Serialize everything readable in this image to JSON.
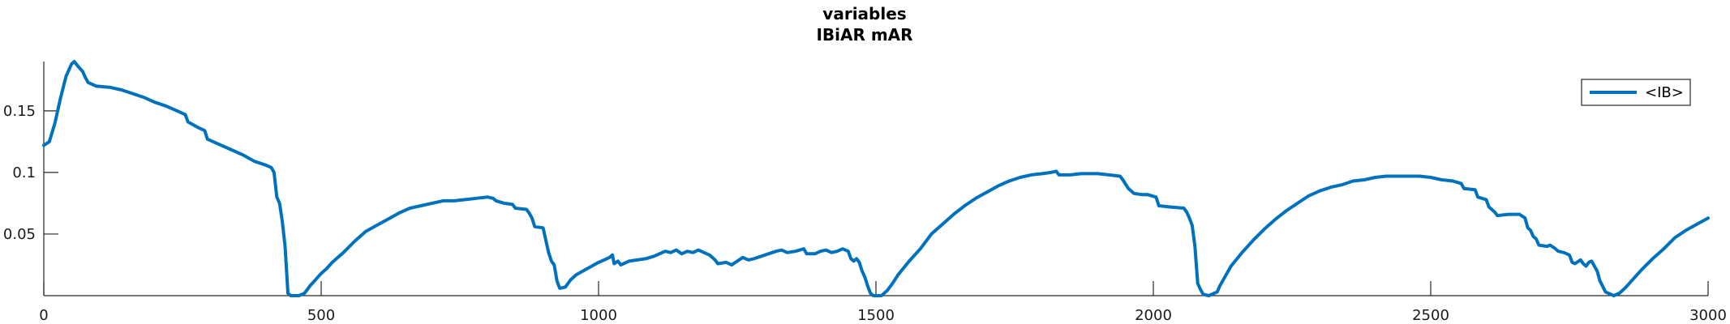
{
  "chart_data": {
    "type": "line",
    "title": "variables",
    "subtitle": "IBiAR mAR",
    "xlabel": "",
    "ylabel": "",
    "xlim": [
      0,
      3000
    ],
    "ylim": [
      0,
      0.19
    ],
    "xticks": [
      0,
      500,
      1000,
      1500,
      2000,
      2500,
      3000
    ],
    "yticks": [
      0.05,
      0.1,
      0.15
    ],
    "ytick_labels": [
      "0.05",
      "0.1",
      "0.15"
    ],
    "grid": false,
    "legend": {
      "position": "top-right",
      "entries": [
        "<IB>"
      ]
    },
    "series": [
      {
        "name": "<IB>",
        "color": "#0072BD",
        "points": [
          [
            0,
            0.122
          ],
          [
            10,
            0.125
          ],
          [
            20,
            0.14
          ],
          [
            30,
            0.16
          ],
          [
            40,
            0.178
          ],
          [
            50,
            0.188
          ],
          [
            55,
            0.19
          ],
          [
            62,
            0.186
          ],
          [
            70,
            0.182
          ],
          [
            75,
            0.177
          ],
          [
            80,
            0.173
          ],
          [
            95,
            0.17
          ],
          [
            120,
            0.169
          ],
          [
            140,
            0.167
          ],
          [
            160,
            0.164
          ],
          [
            180,
            0.161
          ],
          [
            200,
            0.157
          ],
          [
            220,
            0.154
          ],
          [
            240,
            0.15
          ],
          [
            255,
            0.147
          ],
          [
            260,
            0.141
          ],
          [
            280,
            0.136
          ],
          [
            290,
            0.134
          ],
          [
            295,
            0.127
          ],
          [
            320,
            0.122
          ],
          [
            340,
            0.118
          ],
          [
            360,
            0.114
          ],
          [
            380,
            0.109
          ],
          [
            400,
            0.106
          ],
          [
            410,
            0.104
          ],
          [
            415,
            0.1
          ],
          [
            420,
            0.08
          ],
          [
            425,
            0.075
          ],
          [
            430,
            0.06
          ],
          [
            435,
            0.04
          ],
          [
            440,
            0.002
          ],
          [
            445,
            0
          ],
          [
            460,
            0
          ],
          [
            470,
            0.002
          ],
          [
            480,
            0.008
          ],
          [
            490,
            0.013
          ],
          [
            500,
            0.018
          ],
          [
            510,
            0.022
          ],
          [
            520,
            0.027
          ],
          [
            540,
            0.035
          ],
          [
            560,
            0.044
          ],
          [
            580,
            0.052
          ],
          [
            600,
            0.057
          ],
          [
            620,
            0.062
          ],
          [
            640,
            0.067
          ],
          [
            660,
            0.071
          ],
          [
            680,
            0.073
          ],
          [
            700,
            0.075
          ],
          [
            720,
            0.077
          ],
          [
            740,
            0.077
          ],
          [
            760,
            0.078
          ],
          [
            780,
            0.079
          ],
          [
            800,
            0.08
          ],
          [
            810,
            0.079
          ],
          [
            815,
            0.077
          ],
          [
            830,
            0.075
          ],
          [
            845,
            0.074
          ],
          [
            850,
            0.071
          ],
          [
            870,
            0.07
          ],
          [
            875,
            0.067
          ],
          [
            880,
            0.063
          ],
          [
            885,
            0.056
          ],
          [
            900,
            0.055
          ],
          [
            905,
            0.045
          ],
          [
            910,
            0.035
          ],
          [
            915,
            0.028
          ],
          [
            920,
            0.025
          ],
          [
            925,
            0.012
          ],
          [
            930,
            0.006
          ],
          [
            940,
            0.007
          ],
          [
            950,
            0.013
          ],
          [
            960,
            0.017
          ],
          [
            980,
            0.022
          ],
          [
            1000,
            0.027
          ],
          [
            1010,
            0.029
          ],
          [
            1020,
            0.031
          ],
          [
            1025,
            0.033
          ],
          [
            1028,
            0.026
          ],
          [
            1035,
            0.028
          ],
          [
            1040,
            0.025
          ],
          [
            1055,
            0.028
          ],
          [
            1070,
            0.029
          ],
          [
            1085,
            0.03
          ],
          [
            1100,
            0.032
          ],
          [
            1110,
            0.034
          ],
          [
            1120,
            0.036
          ],
          [
            1130,
            0.035
          ],
          [
            1140,
            0.037
          ],
          [
            1150,
            0.034
          ],
          [
            1160,
            0.036
          ],
          [
            1170,
            0.035
          ],
          [
            1180,
            0.037
          ],
          [
            1190,
            0.035
          ],
          [
            1200,
            0.033
          ],
          [
            1210,
            0.029
          ],
          [
            1215,
            0.026
          ],
          [
            1230,
            0.027
          ],
          [
            1240,
            0.025
          ],
          [
            1250,
            0.028
          ],
          [
            1260,
            0.031
          ],
          [
            1270,
            0.029
          ],
          [
            1280,
            0.03
          ],
          [
            1300,
            0.033
          ],
          [
            1320,
            0.036
          ],
          [
            1330,
            0.037
          ],
          [
            1340,
            0.035
          ],
          [
            1355,
            0.036
          ],
          [
            1370,
            0.038
          ],
          [
            1375,
            0.034
          ],
          [
            1390,
            0.034
          ],
          [
            1400,
            0.036
          ],
          [
            1410,
            0.037
          ],
          [
            1420,
            0.035
          ],
          [
            1430,
            0.036
          ],
          [
            1440,
            0.038
          ],
          [
            1450,
            0.036
          ],
          [
            1455,
            0.03
          ],
          [
            1460,
            0.028
          ],
          [
            1465,
            0.03
          ],
          [
            1470,
            0.027
          ],
          [
            1475,
            0.02
          ],
          [
            1480,
            0.015
          ],
          [
            1485,
            0.008
          ],
          [
            1490,
            0.002
          ],
          [
            1495,
            0
          ],
          [
            1510,
            0
          ],
          [
            1520,
            0.004
          ],
          [
            1530,
            0.01
          ],
          [
            1540,
            0.017
          ],
          [
            1560,
            0.028
          ],
          [
            1580,
            0.038
          ],
          [
            1600,
            0.05
          ],
          [
            1620,
            0.058
          ],
          [
            1640,
            0.066
          ],
          [
            1660,
            0.073
          ],
          [
            1680,
            0.079
          ],
          [
            1700,
            0.084
          ],
          [
            1720,
            0.089
          ],
          [
            1740,
            0.093
          ],
          [
            1760,
            0.096
          ],
          [
            1780,
            0.098
          ],
          [
            1800,
            0.099
          ],
          [
            1815,
            0.1
          ],
          [
            1825,
            0.101
          ],
          [
            1830,
            0.098
          ],
          [
            1850,
            0.098
          ],
          [
            1870,
            0.099
          ],
          [
            1900,
            0.099
          ],
          [
            1920,
            0.098
          ],
          [
            1940,
            0.097
          ],
          [
            1945,
            0.094
          ],
          [
            1955,
            0.087
          ],
          [
            1965,
            0.083
          ],
          [
            1980,
            0.082
          ],
          [
            1990,
            0.082
          ],
          [
            2005,
            0.08
          ],
          [
            2010,
            0.073
          ],
          [
            2030,
            0.072
          ],
          [
            2055,
            0.071
          ],
          [
            2060,
            0.068
          ],
          [
            2065,
            0.063
          ],
          [
            2070,
            0.057
          ],
          [
            2075,
            0.04
          ],
          [
            2080,
            0.01
          ],
          [
            2085,
            0.005
          ],
          [
            2090,
            0.001
          ],
          [
            2100,
            0
          ],
          [
            2115,
            0.003
          ],
          [
            2120,
            0.008
          ],
          [
            2130,
            0.016
          ],
          [
            2140,
            0.024
          ],
          [
            2160,
            0.035
          ],
          [
            2180,
            0.045
          ],
          [
            2200,
            0.054
          ],
          [
            2220,
            0.062
          ],
          [
            2240,
            0.069
          ],
          [
            2260,
            0.075
          ],
          [
            2280,
            0.081
          ],
          [
            2300,
            0.085
          ],
          [
            2320,
            0.088
          ],
          [
            2340,
            0.09
          ],
          [
            2360,
            0.093
          ],
          [
            2380,
            0.094
          ],
          [
            2400,
            0.096
          ],
          [
            2420,
            0.097
          ],
          [
            2440,
            0.097
          ],
          [
            2460,
            0.097
          ],
          [
            2480,
            0.097
          ],
          [
            2500,
            0.096
          ],
          [
            2520,
            0.094
          ],
          [
            2540,
            0.093
          ],
          [
            2555,
            0.091
          ],
          [
            2560,
            0.087
          ],
          [
            2580,
            0.086
          ],
          [
            2585,
            0.08
          ],
          [
            2600,
            0.078
          ],
          [
            2605,
            0.072
          ],
          [
            2615,
            0.068
          ],
          [
            2620,
            0.065
          ],
          [
            2640,
            0.066
          ],
          [
            2660,
            0.066
          ],
          [
            2670,
            0.063
          ],
          [
            2675,
            0.055
          ],
          [
            2680,
            0.053
          ],
          [
            2685,
            0.048
          ],
          [
            2690,
            0.046
          ],
          [
            2695,
            0.041
          ],
          [
            2710,
            0.04
          ],
          [
            2715,
            0.041
          ],
          [
            2725,
            0.038
          ],
          [
            2730,
            0.036
          ],
          [
            2740,
            0.035
          ],
          [
            2750,
            0.033
          ],
          [
            2755,
            0.027
          ],
          [
            2760,
            0.026
          ],
          [
            2770,
            0.029
          ],
          [
            2775,
            0.026
          ],
          [
            2780,
            0.024
          ],
          [
            2785,
            0.027
          ],
          [
            2790,
            0.028
          ],
          [
            2795,
            0.024
          ],
          [
            2800,
            0.02
          ],
          [
            2805,
            0.012
          ],
          [
            2815,
            0.003
          ],
          [
            2830,
            0
          ],
          [
            2840,
            0.002
          ],
          [
            2850,
            0.006
          ],
          [
            2860,
            0.011
          ],
          [
            2880,
            0.021
          ],
          [
            2900,
            0.03
          ],
          [
            2920,
            0.038
          ],
          [
            2940,
            0.047
          ],
          [
            2960,
            0.053
          ],
          [
            2980,
            0.058
          ],
          [
            3000,
            0.063
          ]
        ]
      }
    ]
  }
}
